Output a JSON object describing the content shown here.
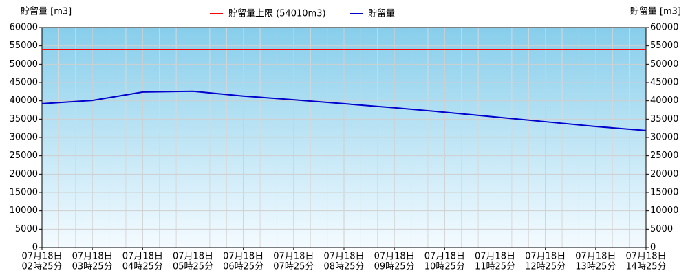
{
  "chart_data": {
    "type": "line",
    "y_label": "貯留量 [m3]",
    "y2_label": "貯留量 [m3]",
    "categories": [
      [
        "07月18日",
        "02時25分"
      ],
      [
        "07月18日",
        "03時25分"
      ],
      [
        "07月18日",
        "04時25分"
      ],
      [
        "07月18日",
        "05時25分"
      ],
      [
        "07月18日",
        "06時25分"
      ],
      [
        "07月18日",
        "07時25分"
      ],
      [
        "07月18日",
        "08時25分"
      ],
      [
        "07月18日",
        "09時25分"
      ],
      [
        "07月18日",
        "10時25分"
      ],
      [
        "07月18日",
        "11時25分"
      ],
      [
        "07月18日",
        "12時25分"
      ],
      [
        "07月18日",
        "13時25分"
      ],
      [
        "07月18日",
        "14時25分"
      ]
    ],
    "series": [
      {
        "name": "貯留量上限 (54010m3)",
        "color": "#ff0000",
        "values": [
          54010,
          54010,
          54010,
          54010,
          54010,
          54010,
          54010,
          54010,
          54010,
          54010,
          54010,
          54010,
          54010
        ]
      },
      {
        "name": "貯留量",
        "color": "#0000cc",
        "values": [
          39200,
          40100,
          42400,
          42600,
          41300,
          40300,
          39200,
          38100,
          36900,
          35600,
          34300,
          33000,
          31900
        ]
      }
    ],
    "ylim": [
      0,
      60000
    ],
    "yticks": [
      0,
      5000,
      10000,
      15000,
      20000,
      25000,
      30000,
      35000,
      40000,
      45000,
      50000,
      55000,
      60000
    ],
    "y2lim": [
      0,
      60000
    ],
    "y2ticks": [
      0,
      5000,
      10000,
      15000,
      20000,
      25000,
      30000,
      35000,
      40000,
      45000,
      50000,
      55000,
      60000
    ],
    "grid": true
  }
}
